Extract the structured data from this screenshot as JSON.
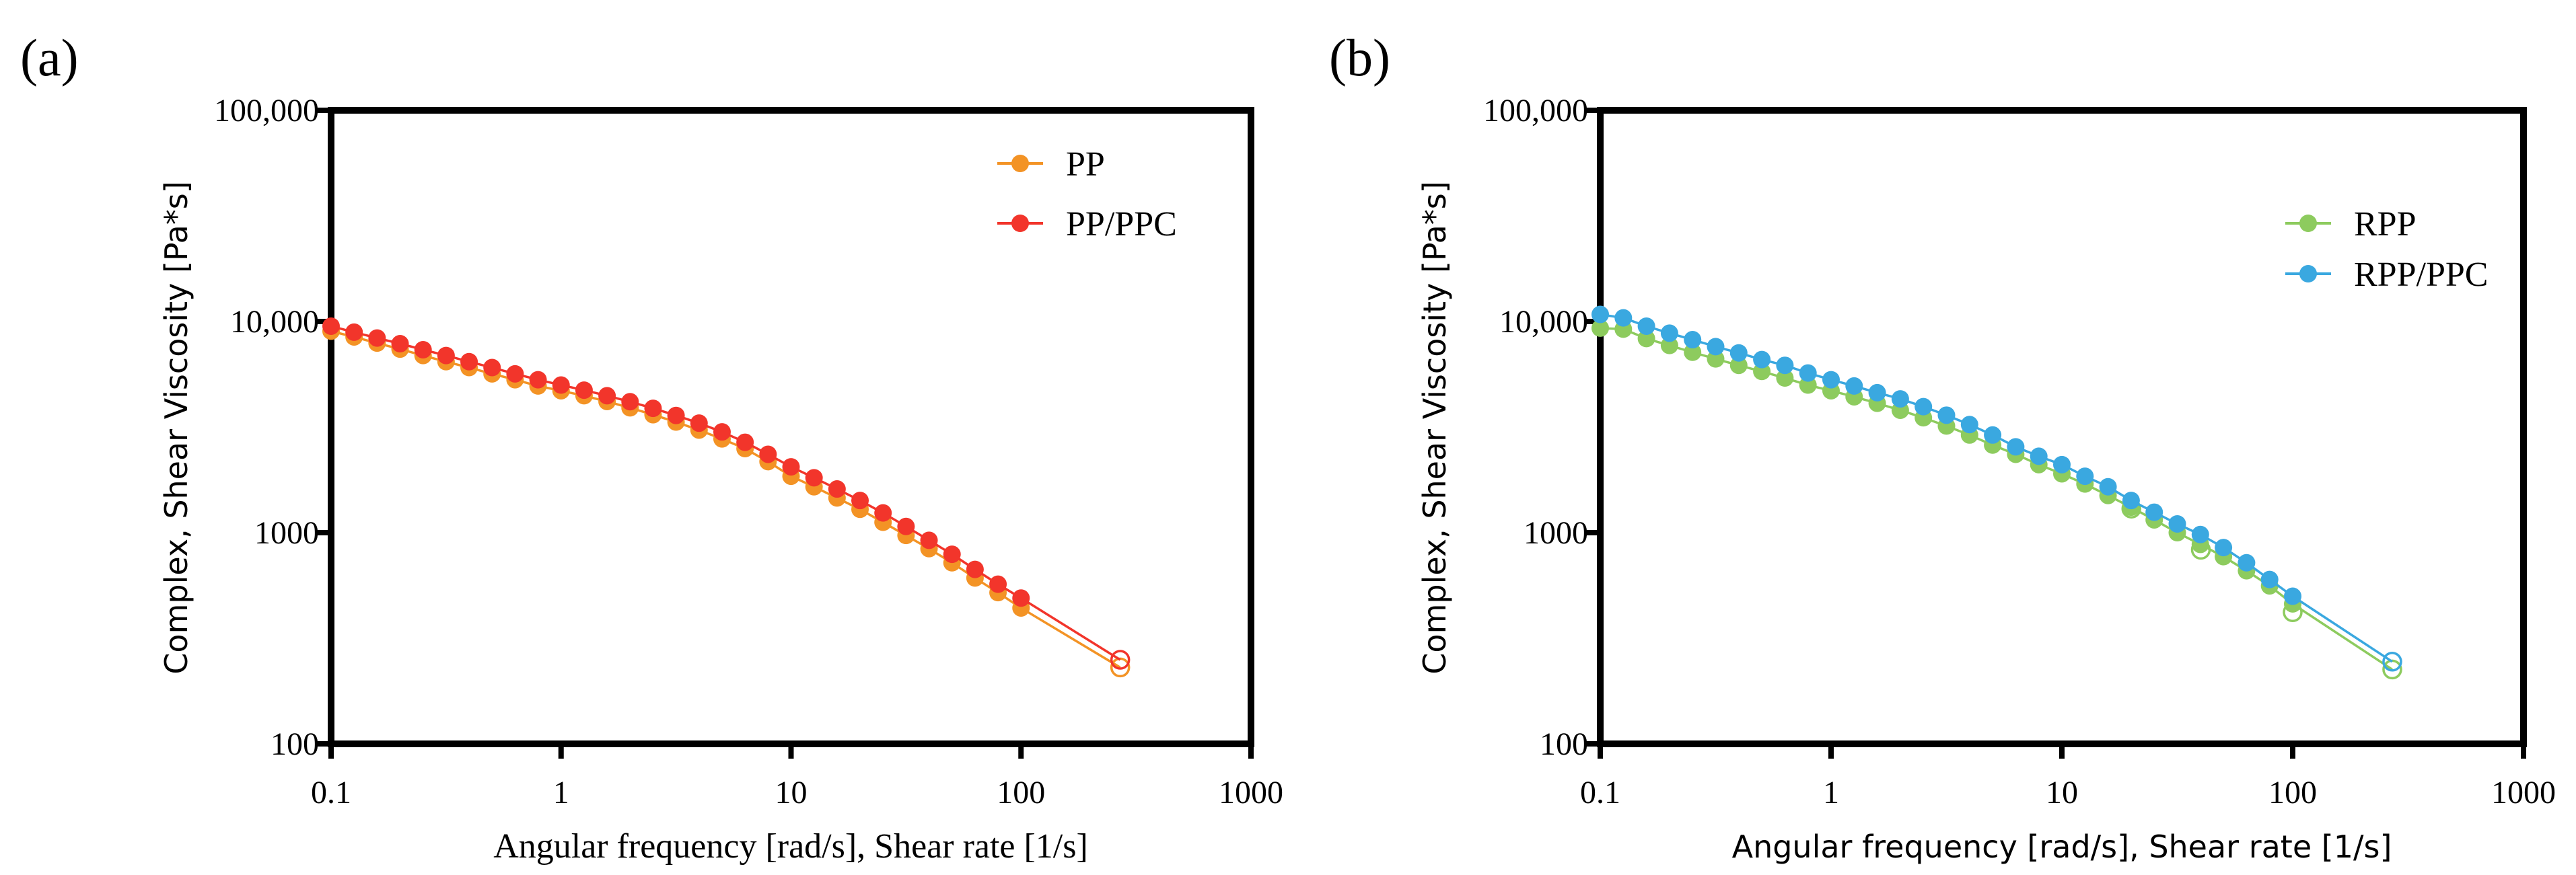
{
  "chart_data": [
    {
      "panel_label": "(a)",
      "type": "line",
      "xlabel": "Angular frequency [rad/s], Shear rate [1/s]",
      "ylabel": "Complex, Shear Viscosity [Pa*s]",
      "xscale": "log",
      "yscale": "log",
      "xlim": [
        0.1,
        1000
      ],
      "ylim": [
        100,
        100000
      ],
      "xticks": [
        {
          "v": 0.1,
          "label": "0.1"
        },
        {
          "v": 1,
          "label": "1"
        },
        {
          "v": 10,
          "label": "10"
        },
        {
          "v": 100,
          "label": "100"
        },
        {
          "v": 1000,
          "label": "1000"
        }
      ],
      "yticks": [
        {
          "v": 100,
          "label": "100"
        },
        {
          "v": 1000,
          "label": "1000"
        },
        {
          "v": 10000,
          "label": "10,000"
        },
        {
          "v": 100000,
          "label": "100,000"
        }
      ],
      "legend_position": "top-right",
      "series": [
        {
          "name": "PP",
          "color": "#F39325",
          "complex_viscosity": [
            9000,
            8450,
            7900,
            7400,
            6900,
            6450,
            6050,
            5650,
            5300,
            4950,
            4700,
            4450,
            4180,
            3900,
            3620,
            3340,
            3060,
            2780,
            2500,
            2170,
            1850,
            1650,
            1460,
            1290,
            1120,
            970,
            840,
            720,
            610,
            520,
            440
          ],
          "shear_viscosity": [
            {
              "x": 270,
              "y": 230
            }
          ]
        },
        {
          "name": "PP/PPC",
          "color": "#F2352B",
          "complex_viscosity": [
            9500,
            8900,
            8350,
            7850,
            7350,
            6900,
            6450,
            6050,
            5650,
            5300,
            5000,
            4730,
            4450,
            4170,
            3880,
            3590,
            3300,
            3000,
            2680,
            2350,
            2050,
            1820,
            1610,
            1420,
            1240,
            1070,
            920,
            790,
            670,
            570,
            490
          ],
          "shear_viscosity": [
            {
              "x": 270,
              "y": 250
            }
          ]
        }
      ]
    },
    {
      "panel_label": "(b)",
      "type": "line",
      "xlabel": "Angular frequency [rad/s], Shear rate [1/s]",
      "ylabel": "Complex, Shear Viscosity [Pa*s]",
      "xscale": "log",
      "yscale": "log",
      "xlim": [
        0.1,
        1000
      ],
      "ylim": [
        100,
        100000
      ],
      "xticks": [
        {
          "v": 0.1,
          "label": "0.1"
        },
        {
          "v": 1,
          "label": "1"
        },
        {
          "v": 10,
          "label": "10"
        },
        {
          "v": 100,
          "label": "100"
        },
        {
          "v": 1000,
          "label": "1000"
        }
      ],
      "yticks": [
        {
          "v": 100,
          "label": "100"
        },
        {
          "v": 1000,
          "label": "1000"
        },
        {
          "v": 10000,
          "label": "10,000"
        },
        {
          "v": 100000,
          "label": "100,000"
        }
      ],
      "legend_position": "top-right",
      "series": [
        {
          "name": "RPP",
          "color": "#8DCB5E",
          "complex_viscosity": [
            9300,
            9200,
            8300,
            7700,
            7150,
            6650,
            6200,
            5800,
            5400,
            5000,
            4700,
            4400,
            4100,
            3800,
            3500,
            3200,
            2900,
            2600,
            2350,
            2100,
            1900,
            1700,
            1500,
            1320,
            1150,
            1000,
            880,
            770,
            660,
            560,
            460
          ],
          "shear_viscosity": [
            {
              "x": 20,
              "y": 1300
            },
            {
              "x": 40,
              "y": 830
            },
            {
              "x": 100,
              "y": 420
            },
            {
              "x": 270,
              "y": 225
            }
          ]
        },
        {
          "name": "RPP/PPC",
          "color": "#3AA8E0",
          "complex_viscosity": [
            10800,
            10400,
            9500,
            8800,
            8200,
            7600,
            7100,
            6600,
            6200,
            5700,
            5300,
            4950,
            4600,
            4300,
            3950,
            3600,
            3250,
            2900,
            2550,
            2300,
            2100,
            1850,
            1650,
            1420,
            1250,
            1100,
            980,
            850,
            720,
            600,
            500
          ],
          "shear_viscosity": [
            {
              "x": 270,
              "y": 245
            }
          ]
        }
      ]
    }
  ]
}
